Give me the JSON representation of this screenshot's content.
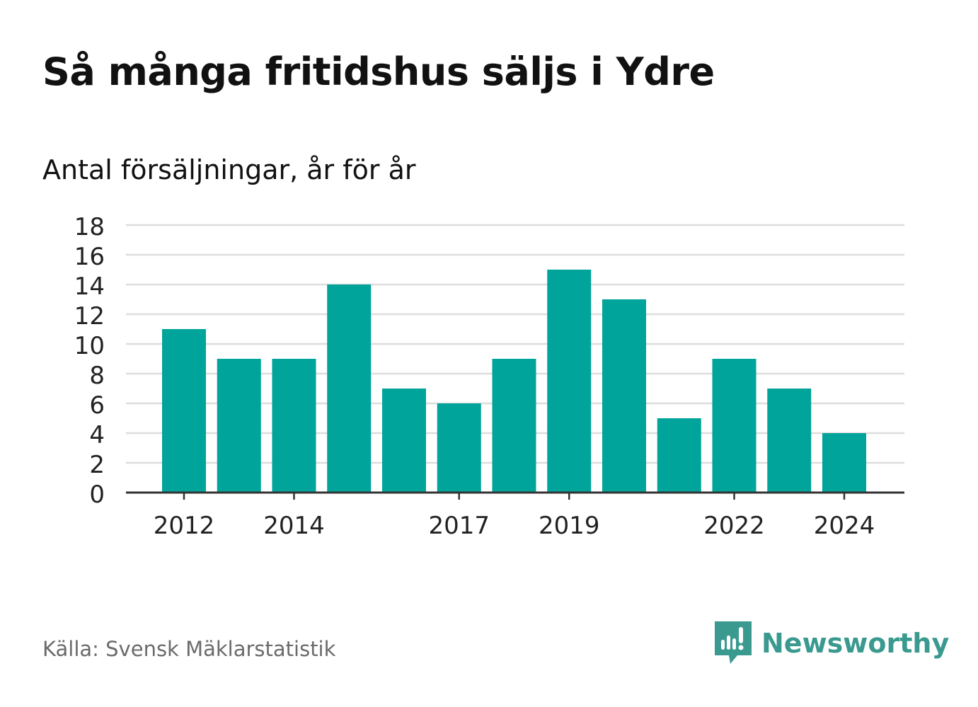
{
  "title": "Så många fritidshus säljs i Ydre",
  "subtitle": "Antal försäljningar, år för år",
  "source": "Källa: Svensk Mäklarstatistik",
  "brand": {
    "name": "Newsworthy",
    "icon": "newsworthy-logo-icon",
    "color": "#3a9a8f"
  },
  "colors": {
    "bar": "#00a49a",
    "grid": "#dddddd",
    "axis": "#333333"
  },
  "chart_data": {
    "type": "bar",
    "title": "Så många fritidshus säljs i Ydre",
    "subtitle": "Antal försäljningar, år för år",
    "categories": [
      "2012",
      "2013",
      "2014",
      "2015",
      "2016",
      "2017",
      "2018",
      "2019",
      "2020",
      "2021",
      "2022",
      "2023",
      "2024"
    ],
    "values": [
      11,
      9,
      9,
      14,
      7,
      6,
      9,
      15,
      13,
      5,
      9,
      7,
      4
    ],
    "x_tick_labels": [
      "2012",
      "2014",
      "2017",
      "2019",
      "2022",
      "2024"
    ],
    "y_ticks": [
      0,
      2,
      4,
      6,
      8,
      10,
      12,
      14,
      16,
      18
    ],
    "ylim": [
      0,
      18
    ],
    "grid": true,
    "legend": "none"
  }
}
